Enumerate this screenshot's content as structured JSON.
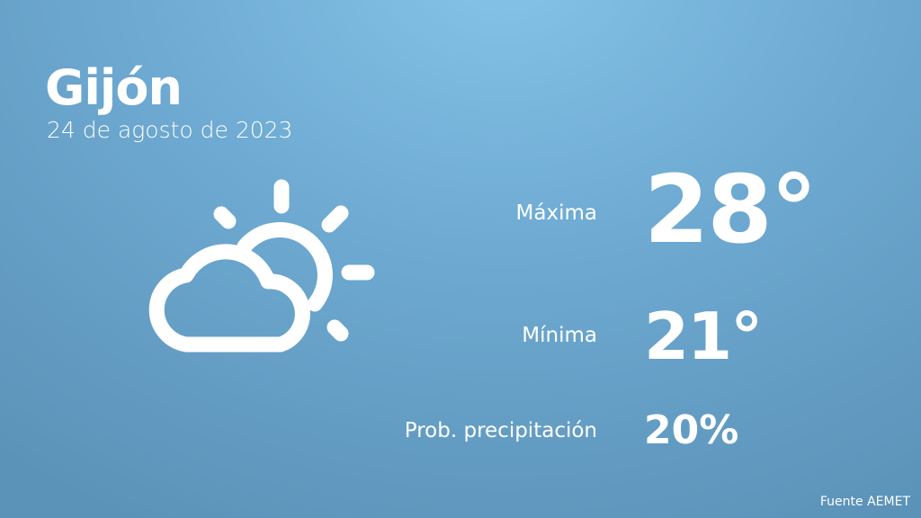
{
  "city": "Gijón",
  "date": "24 de agosto de 2023",
  "icon": "partly-cloudy-icon",
  "stats": [
    {
      "label": "Máxima",
      "value": "28°"
    },
    {
      "label": "Mínima",
      "value": "21°"
    },
    {
      "label": "Prob. precipitación",
      "value": "20%"
    }
  ],
  "source": "Fuente AEMET",
  "colors": {
    "background": "#6eaad2",
    "text": "#ffffff"
  }
}
